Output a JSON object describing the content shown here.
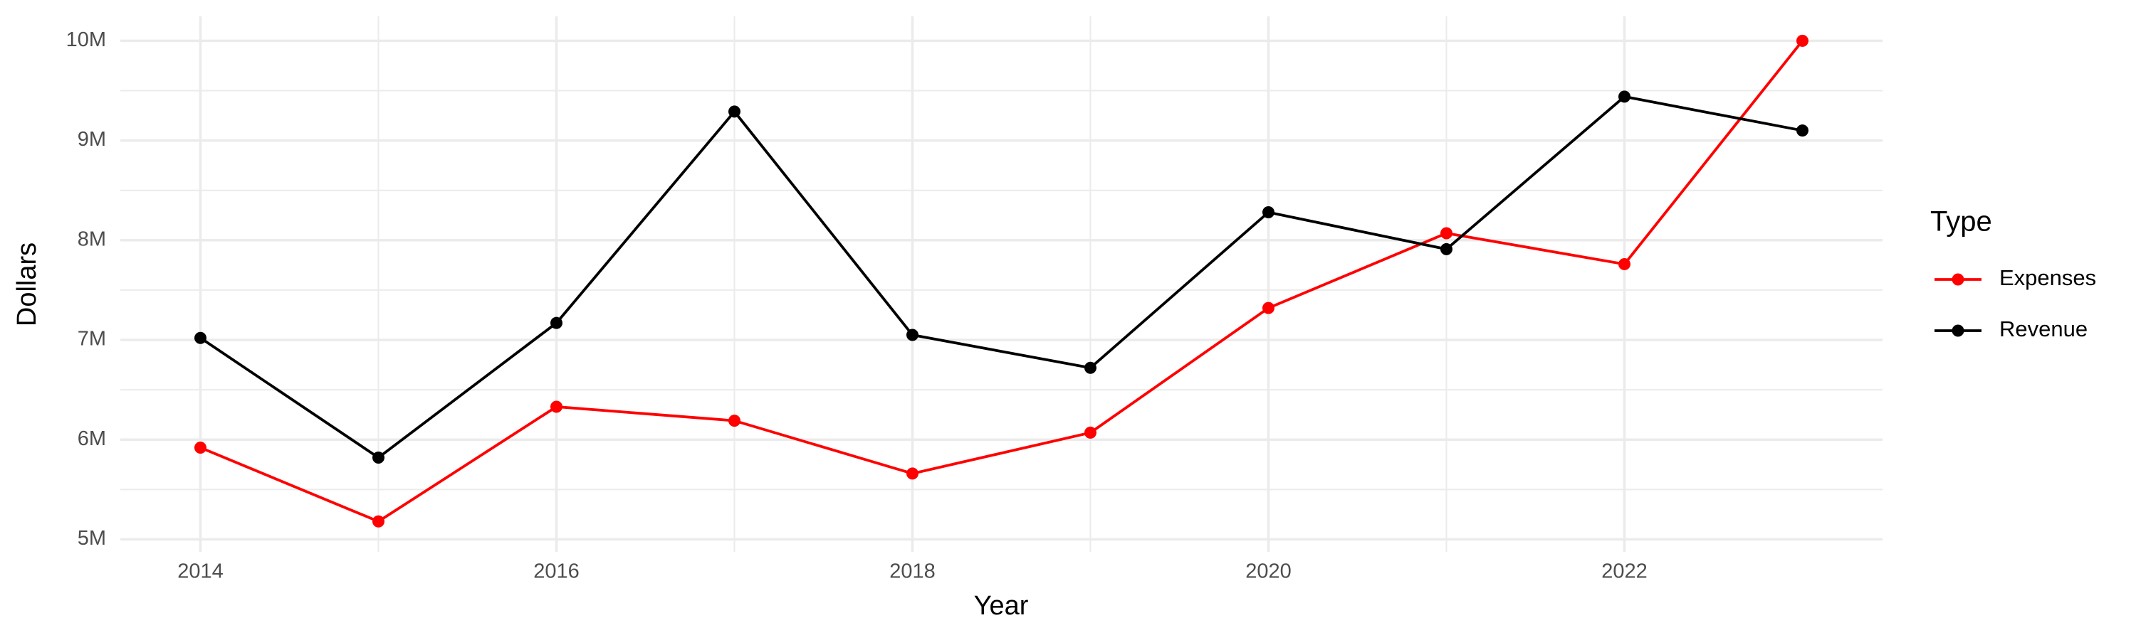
{
  "chart_data": {
    "type": "line",
    "x_label": "Year",
    "y_label": "Dollars",
    "legend_title": "Type",
    "x": [
      2014,
      2015,
      2016,
      2017,
      2018,
      2019,
      2020,
      2021,
      2022,
      2023
    ],
    "series": [
      {
        "name": "Expenses",
        "color": "#ff0000",
        "values": [
          5920000,
          5180000,
          6330000,
          6190000,
          5660000,
          6070000,
          7320000,
          8070000,
          7760000,
          10000000
        ]
      },
      {
        "name": "Revenue",
        "color": "#000000",
        "values": [
          7020000,
          5820000,
          7170000,
          9290000,
          7050000,
          6720000,
          8280000,
          7910000,
          9440000,
          9100000
        ]
      }
    ],
    "xlim": [
      2013.55,
      2023.45
    ],
    "ylim": [
      4875000,
      10245000
    ],
    "xticks": [
      2014,
      2016,
      2018,
      2020,
      2022
    ],
    "yticks": [
      {
        "value": 5000000,
        "label": "5M"
      },
      {
        "value": 6000000,
        "label": "6M"
      },
      {
        "value": 7000000,
        "label": "7M"
      },
      {
        "value": 8000000,
        "label": "8M"
      },
      {
        "value": 9000000,
        "label": "9M"
      },
      {
        "value": 10000000,
        "label": "10M"
      }
    ],
    "grid": true,
    "legend": "right"
  }
}
